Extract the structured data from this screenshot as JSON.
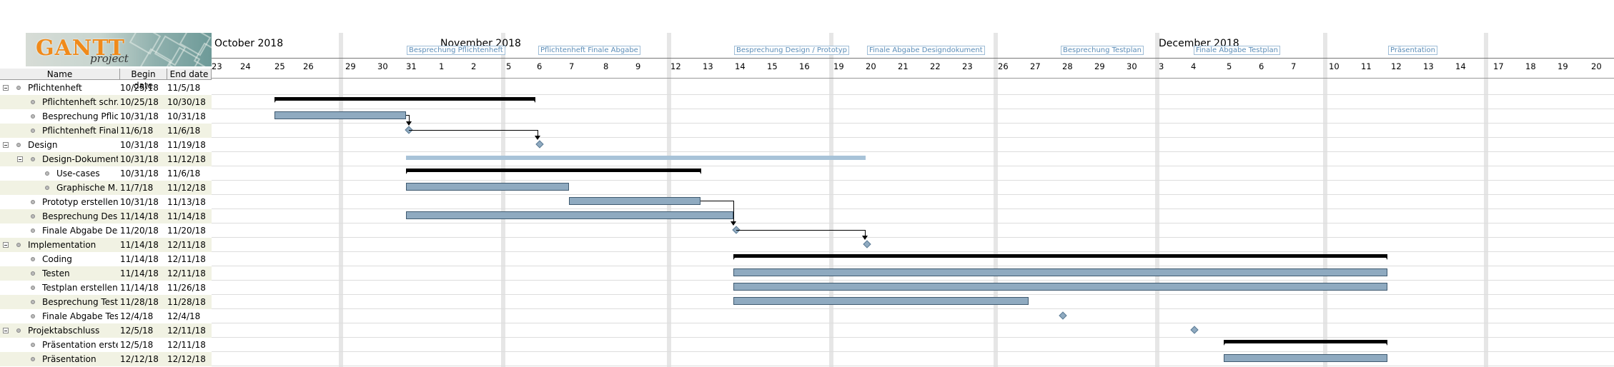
{
  "logo": {
    "title": "GANTT",
    "subtitle": "project"
  },
  "table": {
    "headers": {
      "name": "Name",
      "begin": "Begin date",
      "end": "End date"
    },
    "rows": [
      {
        "name": "Pflichtenheft",
        "begin": "10/25/18",
        "end": "11/5/18"
      },
      {
        "name": "Pflichtenheft schr...",
        "begin": "10/25/18",
        "end": "10/30/18"
      },
      {
        "name": "Besprechung Pflic...",
        "begin": "10/31/18",
        "end": "10/31/18"
      },
      {
        "name": "Pflichtenheft Final...",
        "begin": "11/6/18",
        "end": "11/6/18"
      },
      {
        "name": "Design",
        "begin": "10/31/18",
        "end": "11/19/18"
      },
      {
        "name": "Design-Dokument",
        "begin": "10/31/18",
        "end": "11/12/18"
      },
      {
        "name": "Use-cases",
        "begin": "10/31/18",
        "end": "11/6/18"
      },
      {
        "name": "Graphische M...",
        "begin": "11/7/18",
        "end": "11/12/18"
      },
      {
        "name": "Prototyp erstellen",
        "begin": "10/31/18",
        "end": "11/13/18"
      },
      {
        "name": "Besprechung Desi...",
        "begin": "11/14/18",
        "end": "11/14/18"
      },
      {
        "name": "Finale Abgabe Des...",
        "begin": "11/20/18",
        "end": "11/20/18"
      },
      {
        "name": "Implementation",
        "begin": "11/14/18",
        "end": "12/11/18"
      },
      {
        "name": "Coding",
        "begin": "11/14/18",
        "end": "12/11/18"
      },
      {
        "name": "Testen",
        "begin": "11/14/18",
        "end": "12/11/18"
      },
      {
        "name": "Testplan erstellen",
        "begin": "11/14/18",
        "end": "11/26/18"
      },
      {
        "name": "Besprechung Test...",
        "begin": "11/28/18",
        "end": "11/28/18"
      },
      {
        "name": "Finale Abgabe Tes...",
        "begin": "12/4/18",
        "end": "12/4/18"
      },
      {
        "name": "Projektabschluss",
        "begin": "12/5/18",
        "end": "12/11/18"
      },
      {
        "name": "Präsentation erstel...",
        "begin": "12/5/18",
        "end": "12/11/18"
      },
      {
        "name": "Präsentation",
        "begin": "12/12/18",
        "end": "12/12/18"
      }
    ]
  },
  "timeline": {
    "months": [
      "October 2018",
      "November 2018",
      "December 2018"
    ],
    "days": [
      "23",
      "24",
      "25",
      "26",
      "29",
      "30",
      "31",
      "1",
      "2",
      "5",
      "6",
      "7",
      "8",
      "9",
      "12",
      "13",
      "14",
      "15",
      "16",
      "19",
      "20",
      "21",
      "22",
      "23",
      "26",
      "27",
      "28",
      "29",
      "30",
      "3",
      "4",
      "5",
      "6",
      "7",
      "10",
      "11",
      "12",
      "13",
      "14",
      "17",
      "18",
      "19",
      "20"
    ],
    "milestone_labels": [
      "Besprechung Pflichtenheft",
      "Pflichtenheft Finale Abgabe",
      "Besprechung Design / Prototyp",
      "Finale Abgabe Designdokument",
      "Besprechung Testplan",
      "Finale Abgabe Testplan",
      "Präsentation"
    ]
  },
  "colors": {
    "bar": "#8faac0",
    "summary": "#000000",
    "alt_row": "#f1f2e3",
    "milestone_text": "#5b8db8"
  }
}
